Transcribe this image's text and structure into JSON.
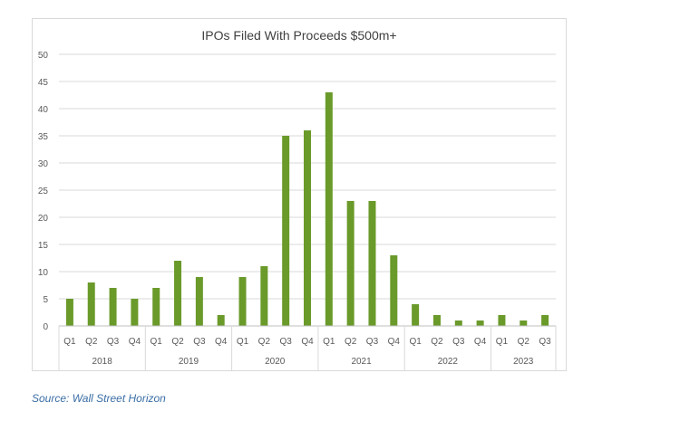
{
  "chart_data": {
    "type": "bar",
    "title": "IPOs Filed With Proceeds $500m+",
    "categories": [
      "Q1",
      "Q2",
      "Q3",
      "Q4",
      "Q1",
      "Q2",
      "Q3",
      "Q4",
      "Q1",
      "Q2",
      "Q3",
      "Q4",
      "Q1",
      "Q2",
      "Q3",
      "Q4",
      "Q1",
      "Q2",
      "Q3",
      "Q4",
      "Q1",
      "Q2",
      "Q3"
    ],
    "groups": [
      {
        "label": "2018",
        "count": 4
      },
      {
        "label": "2019",
        "count": 4
      },
      {
        "label": "2020",
        "count": 4
      },
      {
        "label": "2021",
        "count": 4
      },
      {
        "label": "2022",
        "count": 4
      },
      {
        "label": "2023",
        "count": 3
      }
    ],
    "values": [
      5,
      8,
      7,
      5,
      7,
      12,
      9,
      2,
      9,
      11,
      35,
      36,
      43,
      23,
      23,
      13,
      4,
      2,
      1,
      1,
      2,
      1,
      2
    ],
    "ylim": [
      0,
      50
    ],
    "yticks": [
      0,
      5,
      10,
      15,
      20,
      25,
      30,
      35,
      40,
      45,
      50
    ],
    "grid": true,
    "bar_color": "#6a9a2a"
  },
  "source": "Source: Wall Street Horizon"
}
